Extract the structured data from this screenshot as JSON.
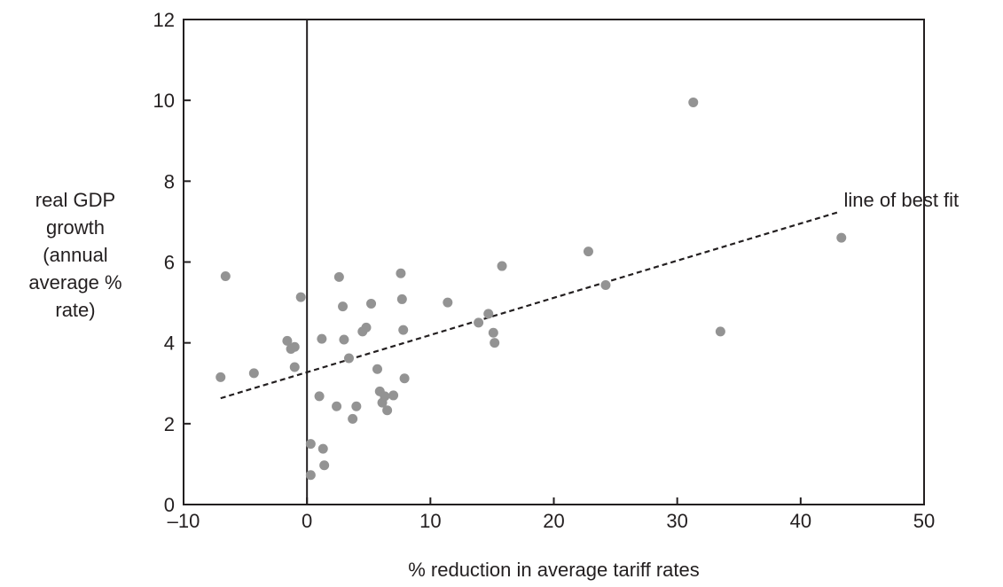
{
  "chart_data": {
    "type": "scatter",
    "xlabel": "% reduction in average tariff rates",
    "ylabel_lines": [
      "real GDP",
      "growth",
      "(annual",
      "average %",
      "rate)"
    ],
    "xlim": [
      -10,
      50
    ],
    "ylim": [
      0,
      12
    ],
    "x_ticks": [
      -10,
      0,
      10,
      20,
      30,
      40,
      50
    ],
    "x_tick_labels": [
      "–10",
      "0",
      "10",
      "20",
      "30",
      "40",
      "50"
    ],
    "y_ticks": [
      0,
      2,
      4,
      6,
      8,
      10,
      12
    ],
    "y_tick_labels": [
      "0",
      "2",
      "4",
      "6",
      "8",
      "10",
      "12"
    ],
    "grid": false,
    "reference_line_x": 0,
    "point_color": "#939393",
    "axis_color": "#231f20",
    "points": [
      {
        "x": -7.0,
        "y": 3.15
      },
      {
        "x": -6.6,
        "y": 5.65
      },
      {
        "x": -4.3,
        "y": 3.25
      },
      {
        "x": -1.6,
        "y": 4.05
      },
      {
        "x": -1.3,
        "y": 3.85
      },
      {
        "x": -1.0,
        "y": 3.9
      },
      {
        "x": -1.0,
        "y": 3.4
      },
      {
        "x": -0.5,
        "y": 5.13
      },
      {
        "x": 0.3,
        "y": 1.5
      },
      {
        "x": 0.3,
        "y": 0.73
      },
      {
        "x": 1.0,
        "y": 2.68
      },
      {
        "x": 1.2,
        "y": 4.1
      },
      {
        "x": 1.3,
        "y": 1.38
      },
      {
        "x": 1.4,
        "y": 0.97
      },
      {
        "x": 2.4,
        "y": 2.43
      },
      {
        "x": 2.6,
        "y": 5.63
      },
      {
        "x": 2.9,
        "y": 4.9
      },
      {
        "x": 3.0,
        "y": 4.08
      },
      {
        "x": 3.4,
        "y": 3.62
      },
      {
        "x": 3.7,
        "y": 2.12
      },
      {
        "x": 4.0,
        "y": 2.43
      },
      {
        "x": 4.5,
        "y": 4.28
      },
      {
        "x": 4.8,
        "y": 4.38
      },
      {
        "x": 5.2,
        "y": 4.97
      },
      {
        "x": 5.7,
        "y": 3.35
      },
      {
        "x": 5.9,
        "y": 2.8
      },
      {
        "x": 6.1,
        "y": 2.52
      },
      {
        "x": 6.3,
        "y": 2.68
      },
      {
        "x": 6.5,
        "y": 2.33
      },
      {
        "x": 7.0,
        "y": 2.7
      },
      {
        "x": 7.6,
        "y": 5.72
      },
      {
        "x": 7.7,
        "y": 5.08
      },
      {
        "x": 7.8,
        "y": 4.32
      },
      {
        "x": 7.9,
        "y": 3.12
      },
      {
        "x": 11.4,
        "y": 5.0
      },
      {
        "x": 13.9,
        "y": 4.5
      },
      {
        "x": 14.7,
        "y": 4.72
      },
      {
        "x": 15.1,
        "y": 4.25
      },
      {
        "x": 15.2,
        "y": 4.0
      },
      {
        "x": 15.8,
        "y": 5.9
      },
      {
        "x": 22.8,
        "y": 6.26
      },
      {
        "x": 24.2,
        "y": 5.43
      },
      {
        "x": 31.3,
        "y": 9.95
      },
      {
        "x": 33.5,
        "y": 4.28
      },
      {
        "x": 43.3,
        "y": 6.6
      }
    ],
    "best_fit": {
      "x": [
        -7.0,
        43.0
      ],
      "y": [
        2.63,
        7.23
      ],
      "style": "dashed"
    },
    "annotations": [
      {
        "text": "line of best fit",
        "x": 43.5,
        "y": 7.5
      }
    ]
  }
}
